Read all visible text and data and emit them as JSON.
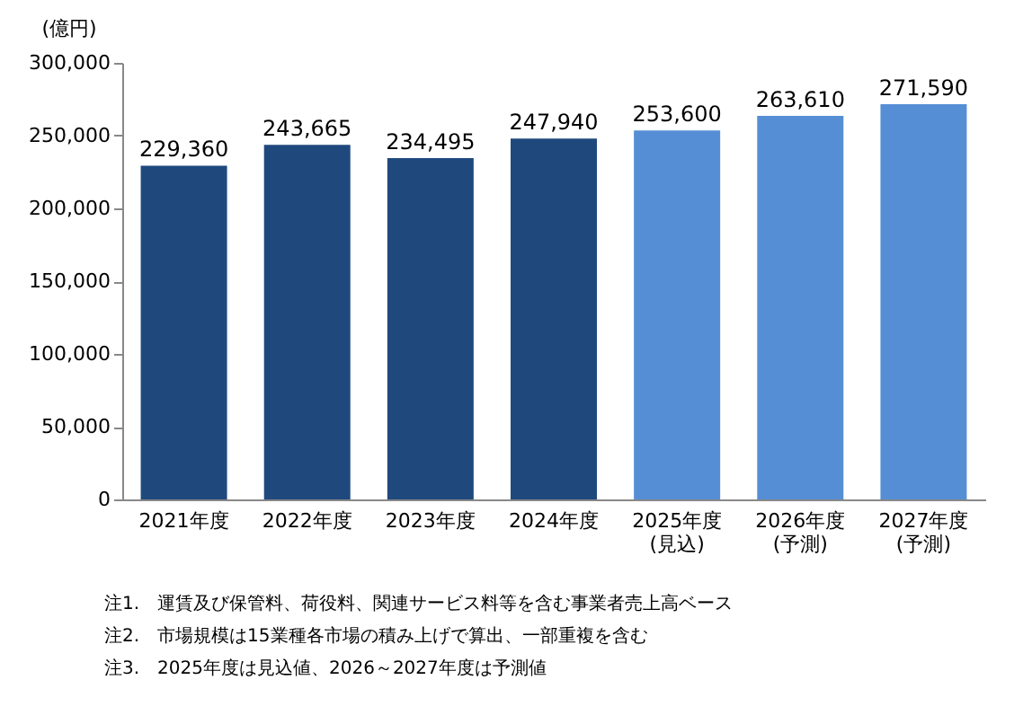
{
  "chart_data": {
    "type": "bar",
    "ylabel": "(億円)",
    "categories": [
      "2021年度",
      "2022年度",
      "2023年度",
      "2024年度",
      "2025年度\n(見込)",
      "2026年度\n(予測)",
      "2027年度\n(予測)"
    ],
    "values": [
      229360,
      243665,
      234495,
      247940,
      253600,
      263610,
      271590
    ],
    "colors": [
      "#1f497d",
      "#1f497d",
      "#1f497d",
      "#1f497d",
      "#558ed5",
      "#558ed5",
      "#558ed5"
    ],
    "value_labels": [
      "229,360",
      "243,665",
      "234,495",
      "247,940",
      "253,600",
      "263,610",
      "271,590"
    ],
    "ylim": [
      0,
      300000
    ],
    "yticks": [
      {
        "value": 0,
        "label": "0"
      },
      {
        "value": 50000,
        "label": "50,000"
      },
      {
        "value": 100000,
        "label": "100,000"
      },
      {
        "value": 150000,
        "label": "150,000"
      },
      {
        "value": 200000,
        "label": "200,000"
      },
      {
        "value": 250000,
        "label": "250,000"
      },
      {
        "value": 300000,
        "label": "300,000"
      }
    ],
    "grid": false,
    "annotations": [
      "注1.　運賃及び保管料、荷役料、関連サービス料等を含む事業者売上高ベース",
      "注2.　市場規模は15業種各市場の積み上げで算出、一部重複を含む",
      "注3.　2025年度は見込値、2026～2027年度は予測値"
    ]
  }
}
